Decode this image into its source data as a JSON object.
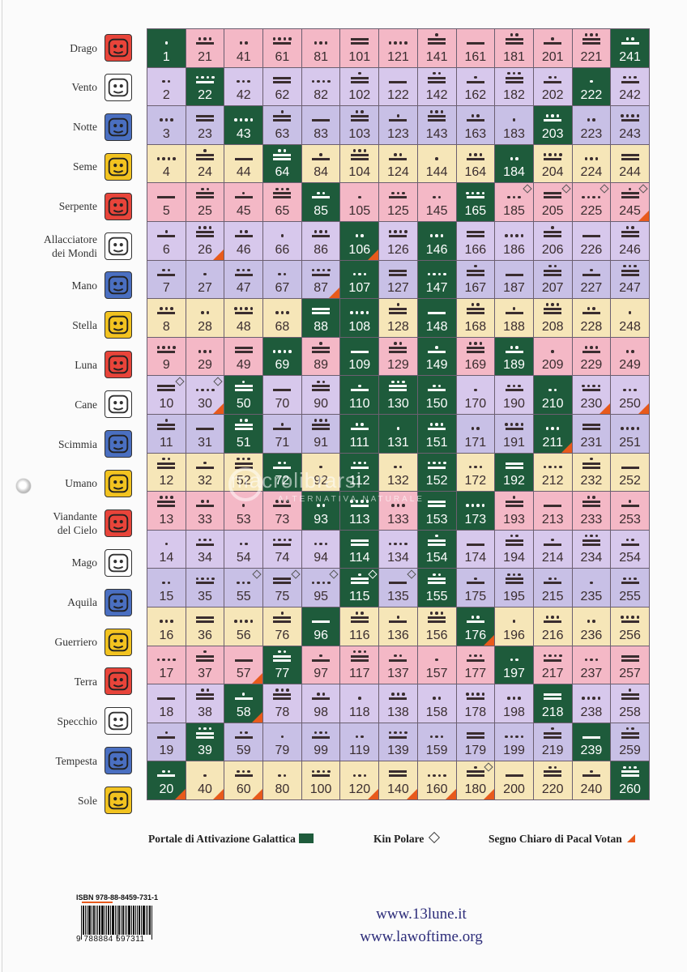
{
  "seals": [
    {
      "name": "Drago",
      "lines": [
        "Drago"
      ],
      "color": "#e8443a",
      "icon": "red-dragon-seal-icon"
    },
    {
      "name": "Vento",
      "lines": [
        "Vento"
      ],
      "color": "#ffffff",
      "icon": "white-wind-seal-icon"
    },
    {
      "name": "Notte",
      "lines": [
        "Notte"
      ],
      "color": "#4a6fc1",
      "icon": "blue-night-seal-icon"
    },
    {
      "name": "Seme",
      "lines": [
        "Seme"
      ],
      "color": "#f2c320",
      "icon": "yellow-seed-seal-icon"
    },
    {
      "name": "Serpente",
      "lines": [
        "Serpente"
      ],
      "color": "#e8443a",
      "icon": "red-serpent-seal-icon"
    },
    {
      "name": "Allacciatore dei Mondi",
      "lines": [
        "Allacciatore",
        "dei Mondi"
      ],
      "color": "#ffffff",
      "icon": "white-worldbridger-seal-icon"
    },
    {
      "name": "Mano",
      "lines": [
        "Mano"
      ],
      "color": "#4a6fc1",
      "icon": "blue-hand-seal-icon"
    },
    {
      "name": "Stella",
      "lines": [
        "Stella"
      ],
      "color": "#f2c320",
      "icon": "yellow-star-seal-icon"
    },
    {
      "name": "Luna",
      "lines": [
        "Luna"
      ],
      "color": "#e8443a",
      "icon": "red-moon-seal-icon"
    },
    {
      "name": "Cane",
      "lines": [
        "Cane"
      ],
      "color": "#ffffff",
      "icon": "white-dog-seal-icon"
    },
    {
      "name": "Scimmia",
      "lines": [
        "Scimmia"
      ],
      "color": "#4a6fc1",
      "icon": "blue-monkey-seal-icon"
    },
    {
      "name": "Umano",
      "lines": [
        "Umano"
      ],
      "color": "#f2c320",
      "icon": "yellow-human-seal-icon"
    },
    {
      "name": "Viandante del Cielo",
      "lines": [
        "Viandante",
        "del Cielo"
      ],
      "color": "#e8443a",
      "icon": "red-skywalker-seal-icon"
    },
    {
      "name": "Mago",
      "lines": [
        "Mago"
      ],
      "color": "#ffffff",
      "icon": "white-wizard-seal-icon"
    },
    {
      "name": "Aquila",
      "lines": [
        "Aquila"
      ],
      "color": "#4a6fc1",
      "icon": "blue-eagle-seal-icon"
    },
    {
      "name": "Guerriero",
      "lines": [
        "Guerriero"
      ],
      "color": "#f2c320",
      "icon": "yellow-warrior-seal-icon"
    },
    {
      "name": "Terra",
      "lines": [
        "Terra"
      ],
      "color": "#e8443a",
      "icon": "red-earth-seal-icon"
    },
    {
      "name": "Specchio",
      "lines": [
        "Specchio"
      ],
      "color": "#ffffff",
      "icon": "white-mirror-seal-icon"
    },
    {
      "name": "Tempesta",
      "lines": [
        "Tempesta"
      ],
      "color": "#4a6fc1",
      "icon": "blue-storm-seal-icon"
    },
    {
      "name": "Sole",
      "lines": [
        "Sole"
      ],
      "color": "#f2c320",
      "icon": "yellow-sun-seal-icon"
    }
  ],
  "grid": {
    "columns": 13,
    "rows": 20,
    "row_colors": [
      "#f4b8c6",
      "#d7c8ec",
      "#c8c0e6",
      "#f6e6b8"
    ],
    "portal_color": "#1e5b3b",
    "galactic_activation_portals": [
      1,
      22,
      43,
      64,
      85,
      106,
      107,
      108,
      69,
      50,
      51,
      72,
      93,
      114,
      115,
      96,
      77,
      58,
      39,
      20,
      241,
      222,
      203,
      184,
      165,
      146,
      147,
      148,
      189,
      210,
      211,
      192,
      173,
      154,
      155,
      176,
      197,
      218,
      239,
      260,
      88,
      109,
      110,
      111,
      112,
      113,
      130,
      131,
      149,
      150,
      151,
      152,
      153
    ],
    "polar_kin": [
      10,
      185,
      205,
      225,
      245,
      55,
      75,
      95,
      115,
      135,
      180,
      30
    ],
    "pacal_votan_clear_signs": [
      20,
      26,
      30,
      40,
      57,
      58,
      60,
      87,
      106,
      120,
      140,
      160,
      176,
      211,
      230,
      245,
      250,
      180
    ]
  },
  "legend": {
    "portal_label": "Portale di Attivazione Galattica",
    "polar_label": "Kin Polare",
    "pacal_label": "Segno Chiaro di Pacal Votan"
  },
  "watermark": {
    "brand": "macrolibrarsi",
    "tagline": "ALTERNATIVA NATURALE"
  },
  "isbn": {
    "label": "ISBN 978-88-8459-731-1",
    "digits": "9 788884 597311"
  },
  "links": [
    "www.13lune.it",
    "www.lawoftime.org"
  ]
}
